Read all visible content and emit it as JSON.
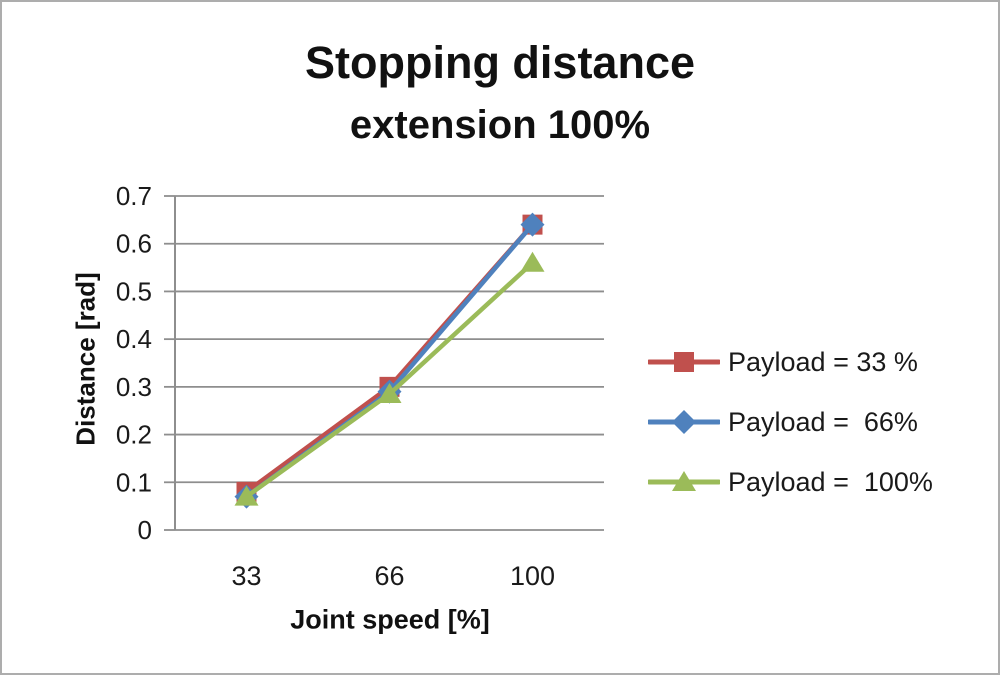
{
  "figure": {
    "background": "#FFFFFF",
    "border_color": "#ADADAD"
  },
  "chart_data": {
    "type": "line",
    "title": "Stopping distance",
    "subtitle": "extension 100%",
    "xlabel": "Joint speed [%]",
    "ylabel": "Distance [rad]",
    "categories": [
      "33",
      "66",
      "100"
    ],
    "x_values": [
      33,
      66,
      100
    ],
    "ylim": [
      0,
      0.7
    ],
    "ytick_step": 0.1,
    "ytick_labels": [
      "0.7",
      "0.6",
      "0.5",
      "0.4",
      "0.3",
      "0.2",
      "0.1",
      "0"
    ],
    "grid": true,
    "legend_position": "right",
    "series": [
      {
        "name": "Payload = 33 %",
        "marker": "square",
        "color": "#C0504D",
        "values": [
          0.08,
          0.3,
          0.64
        ]
      },
      {
        "name": "Payload =  66%",
        "marker": "diamond",
        "color": "#4F81BD",
        "values": [
          0.07,
          0.29,
          0.64
        ]
      },
      {
        "name": "Payload =  100%",
        "marker": "triangle",
        "color": "#9BBB59",
        "values": [
          0.07,
          0.285,
          0.56
        ]
      }
    ],
    "colors": {
      "grid": "#8E8E8E",
      "axis": "#8E8E8E",
      "text": "#1A1A1A"
    }
  }
}
